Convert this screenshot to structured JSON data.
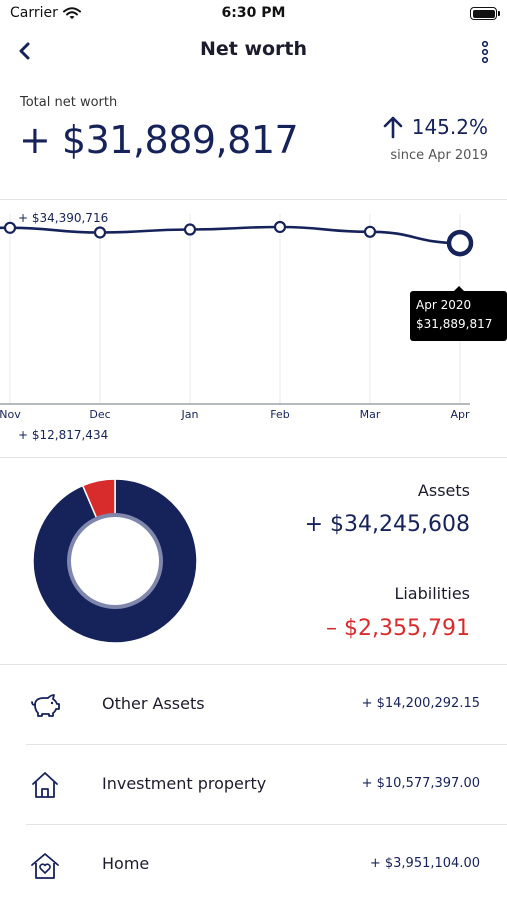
{
  "status_bar": {
    "carrier": "Carrier",
    "time": "6:30 PM"
  },
  "header": {
    "title": "Net worth",
    "back_icon": "chevron-left-icon",
    "more_icon": "more-vertical-icon"
  },
  "summary": {
    "label": "Total net worth",
    "value": "+ $31,889,817",
    "change_pct": "145.2%",
    "change_since": "since Apr 2019",
    "change_direction": "up"
  },
  "chart_data": {
    "type": "line",
    "categories": [
      "Nov",
      "Dec",
      "Jan",
      "Feb",
      "Mar",
      "Apr"
    ],
    "values": [
      33700000,
      33150000,
      33500000,
      33800000,
      33230000,
      31889817
    ],
    "ylim": [
      12817434,
      34390716
    ],
    "max_label": "+ $34,390,716",
    "min_label": "+ $12,817,434",
    "highlight": {
      "index": 5,
      "date": "Apr 2020",
      "value": "$31,889,817"
    },
    "grid": "vertical",
    "line_color": "#16225a"
  },
  "breakdown": {
    "assets_label": "Assets",
    "assets_value": "+ $34,245,608",
    "assets_amount": 34245608,
    "liabilities_label": "Liabilities",
    "liabilities_value": "– $2,355,791",
    "liabilities_amount": 2355791,
    "assets_color": "#16225a",
    "liabilities_color": "#d82c2c"
  },
  "categories": [
    {
      "icon": "piggy-bank-icon",
      "name": "Other Assets",
      "amount": "+ $14,200,292.15"
    },
    {
      "icon": "house-icon",
      "name": "Investment property",
      "amount": "+ $10,577,397.00"
    },
    {
      "icon": "home-heart-icon",
      "name": "Home",
      "amount": "+ $3,951,104.00"
    }
  ]
}
